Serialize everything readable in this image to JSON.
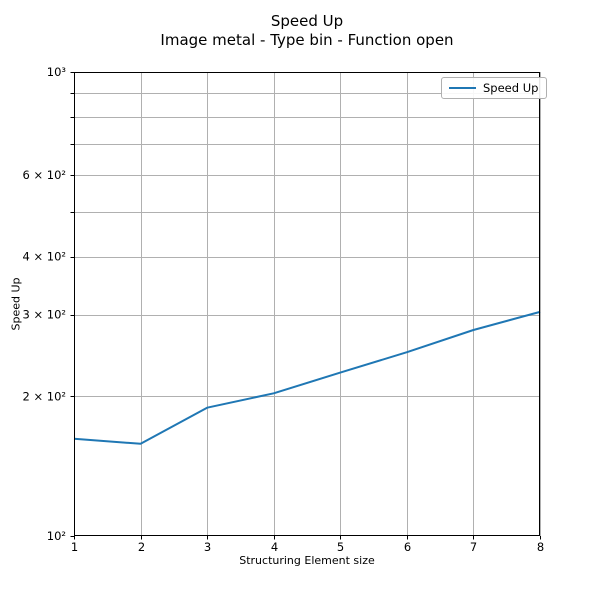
{
  "figure": {
    "title": "Speed Up",
    "subtitle": "Image metal - Type bin - Function open"
  },
  "legend": {
    "label": "Speed Up"
  },
  "chart_data": {
    "type": "line",
    "title": "Speed Up",
    "subtitle": "Image metal - Type bin - Function open",
    "xlabel": "Structuring Element size",
    "ylabel": "Speed Up",
    "x": [
      1,
      2,
      3,
      4,
      5,
      6,
      7,
      8
    ],
    "series": [
      {
        "name": "Speed Up",
        "values": [
          162,
          158,
          189,
          203,
          225,
          249,
          278,
          304
        ]
      }
    ],
    "xlim": [
      1,
      8
    ],
    "ylim": [
      100,
      1000
    ],
    "yscale": "log",
    "grid": true,
    "legend_position": "upper right",
    "x_ticks": [
      {
        "value": 1,
        "label": "1"
      },
      {
        "value": 2,
        "label": "2"
      },
      {
        "value": 3,
        "label": "3"
      },
      {
        "value": 4,
        "label": "4"
      },
      {
        "value": 5,
        "label": "5"
      },
      {
        "value": 6,
        "label": "6"
      },
      {
        "value": 7,
        "label": "7"
      },
      {
        "value": 8,
        "label": "8"
      }
    ],
    "y_ticks": [
      {
        "value": 1000,
        "label": "10³"
      },
      {
        "value": 600,
        "label": "6 × 10²"
      },
      {
        "value": 400,
        "label": "4 × 10²"
      },
      {
        "value": 300,
        "label": "3 × 10²"
      },
      {
        "value": 200,
        "label": "2 × 10²"
      },
      {
        "value": 100,
        "label": "10²"
      }
    ],
    "y_gridlines": [
      200,
      300,
      400,
      500,
      600,
      700,
      800,
      900
    ],
    "colors": {
      "line": "#1f77b4",
      "grid": "#b0b0b0",
      "spine": "#000000",
      "legend_border": "#b0b0b0",
      "text": "#000000"
    }
  }
}
